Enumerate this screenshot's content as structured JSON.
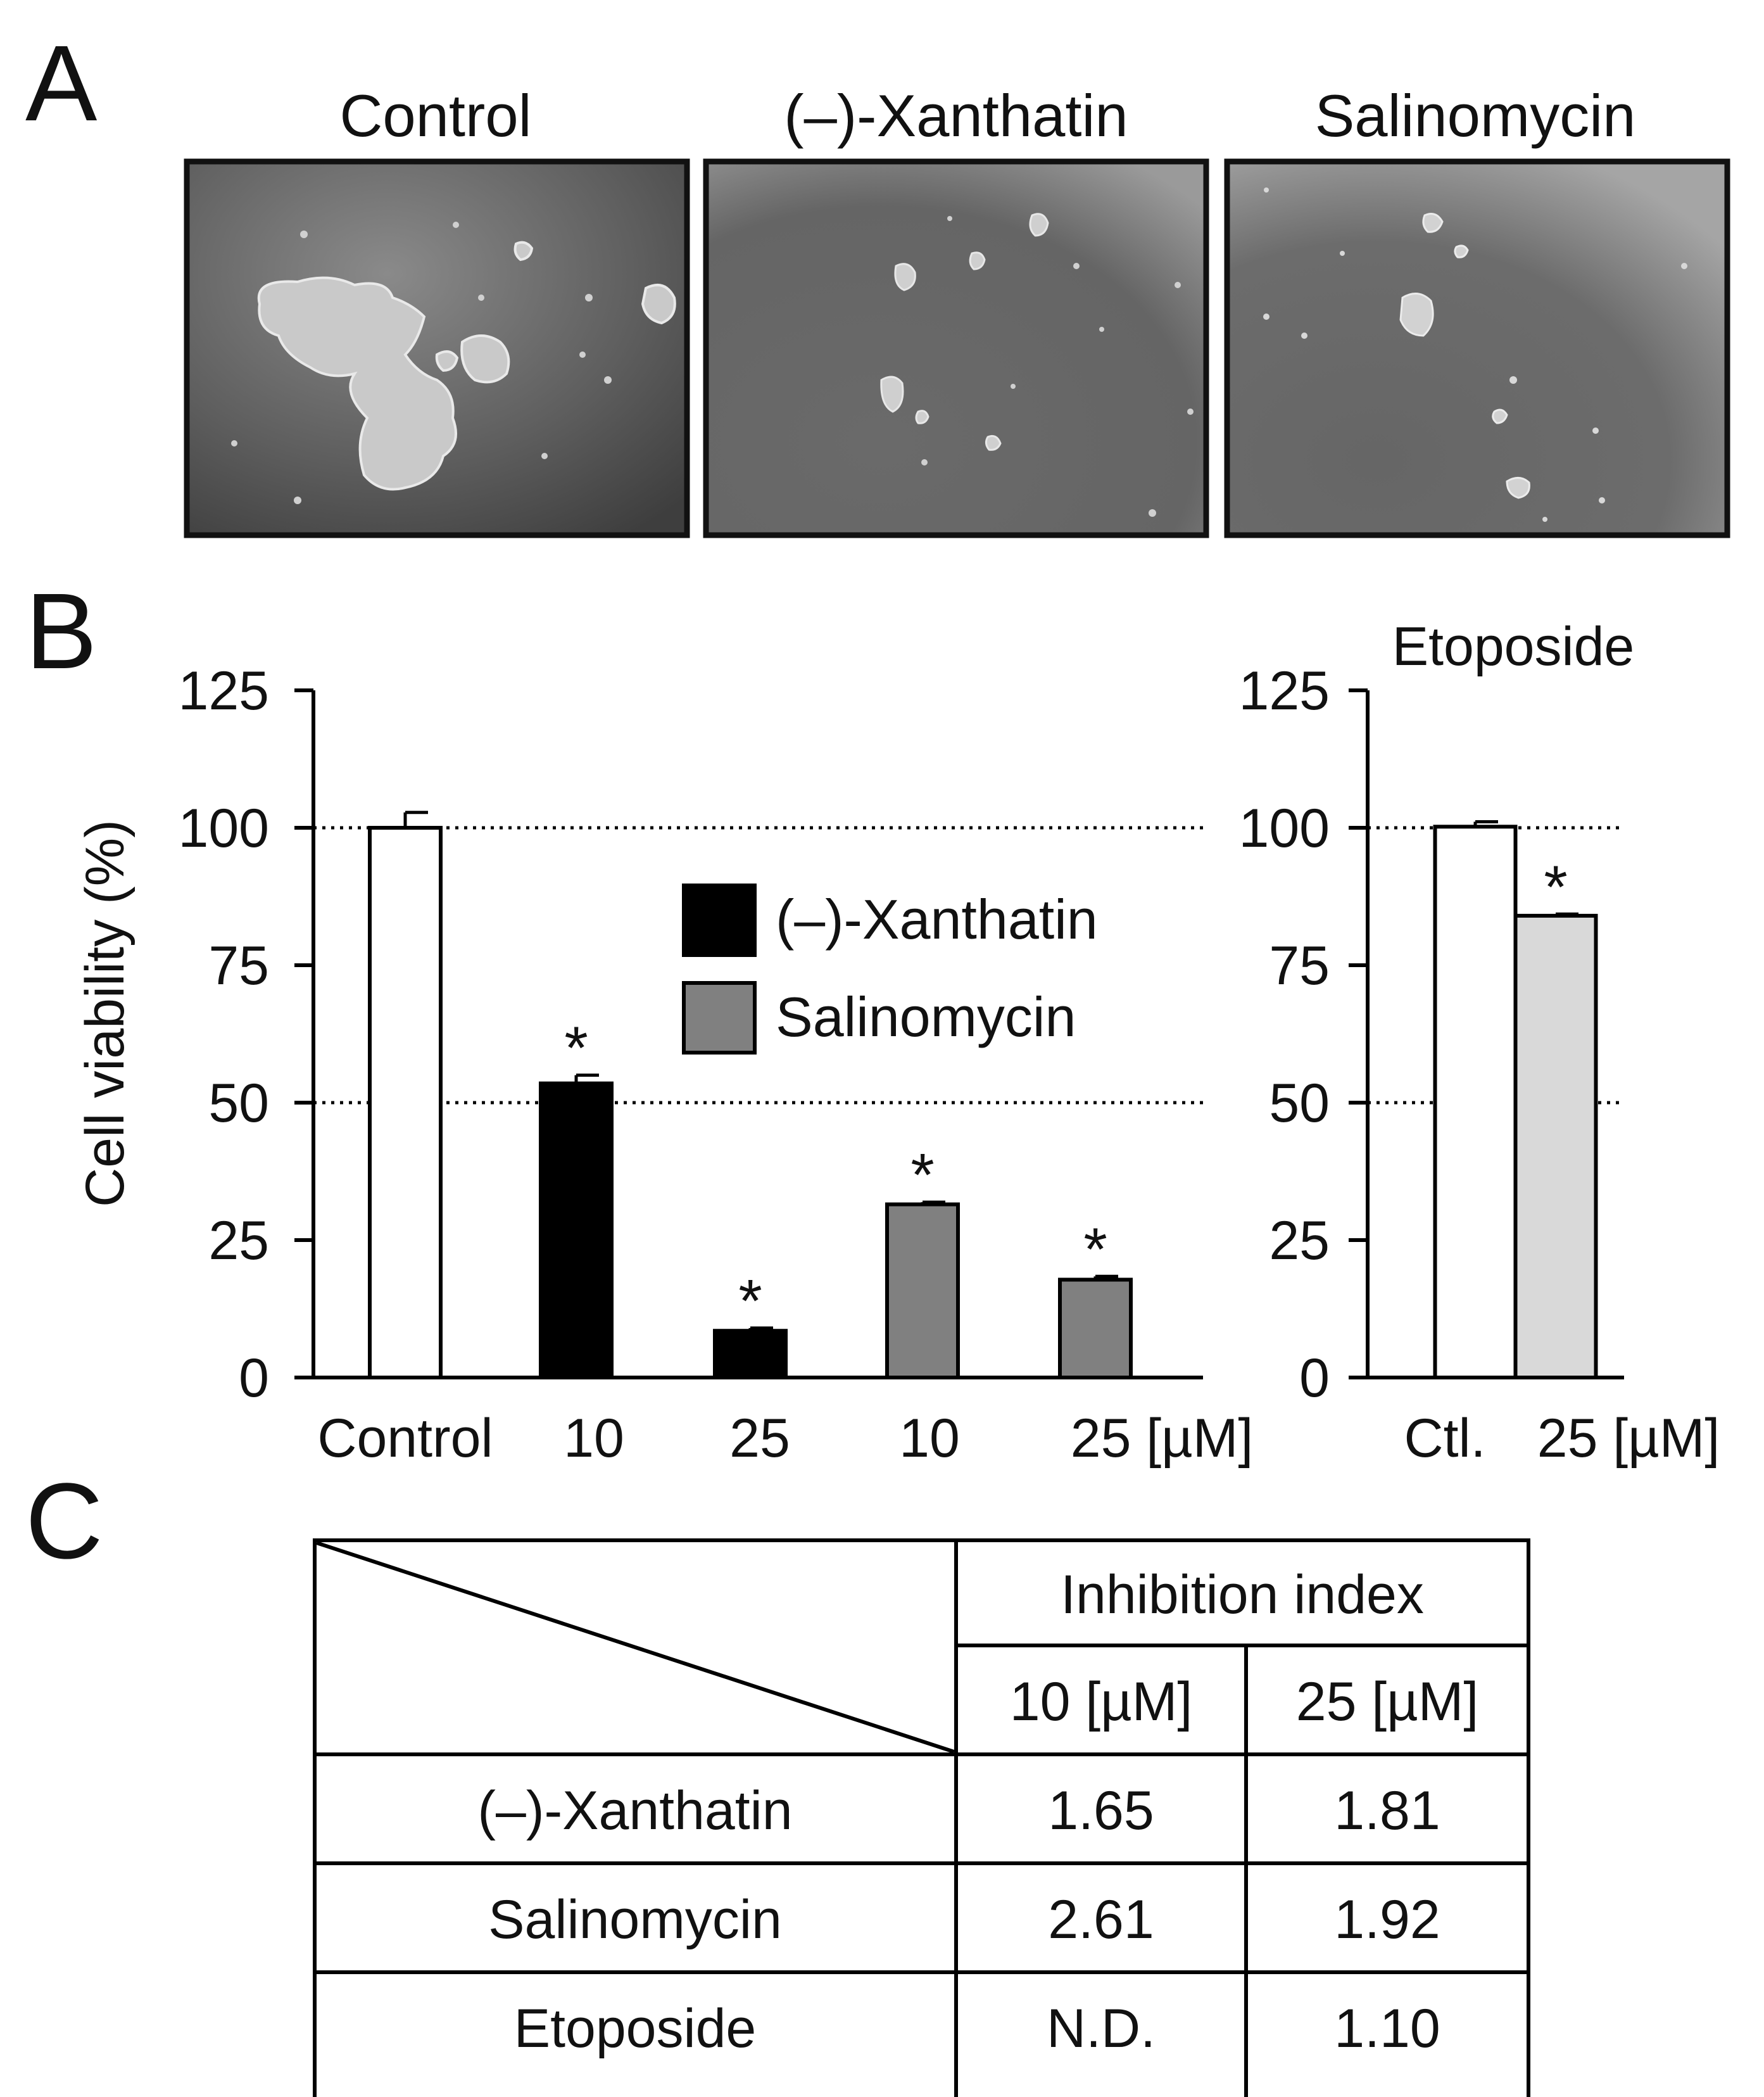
{
  "panels": {
    "a": "A",
    "b": "B",
    "c": "C"
  },
  "photos": [
    {
      "title": "Control"
    },
    {
      "title": "(–)-Xanthatin"
    },
    {
      "title": "Salinomycin"
    }
  ],
  "colors": {
    "xanthatin": "#000000",
    "salinomycin": "#808080",
    "control": "#ffffff",
    "etoposide": "#d9d9d9"
  },
  "chart_data": [
    {
      "type": "bar",
      "ylabel": "Cell viability (%)",
      "ylim": [
        0,
        125
      ],
      "yticks": [
        0,
        25,
        50,
        75,
        100,
        125
      ],
      "reference_lines": [
        50,
        100
      ],
      "grid": false,
      "legend": {
        "placement": "center",
        "entries": [
          "(–)-Xanthatin",
          "Salinomycin"
        ]
      },
      "categories": [
        "Control",
        "10",
        "25",
        "10",
        "25 [µM]"
      ],
      "bars": [
        {
          "value": 100,
          "error": 2.8,
          "series": "control",
          "significant": false
        },
        {
          "value": 53.5,
          "error": 1.5,
          "series": "xanthatin",
          "significant": true
        },
        {
          "value": 8.5,
          "error": 0.5,
          "series": "xanthatin",
          "significant": true
        },
        {
          "value": 31.5,
          "error": 0.4,
          "series": "salinomycin",
          "significant": true
        },
        {
          "value": 17.8,
          "error": 0.6,
          "series": "salinomycin",
          "significant": true
        }
      ],
      "star": "*"
    },
    {
      "type": "bar",
      "title": "Etoposide",
      "ylim": [
        0,
        125
      ],
      "yticks": [
        0,
        25,
        50,
        75,
        100,
        125
      ],
      "reference_lines": [
        50,
        100
      ],
      "grid": false,
      "categories": [
        "Ctl.",
        "25 [µM]"
      ],
      "bars": [
        {
          "value": 100.2,
          "error": 0.9,
          "series": "control",
          "significant": false
        },
        {
          "value": 84,
          "error": 0.3,
          "series": "etoposide",
          "significant": true
        }
      ],
      "star": "*"
    }
  ],
  "table": {
    "header": "Inhibition index",
    "subheaders": [
      "10 [µM]",
      "25 [µM]"
    ],
    "rows": [
      {
        "label": "(–)-Xanthatin",
        "values": [
          "1.65",
          "1.81"
        ]
      },
      {
        "label": "Salinomycin",
        "values": [
          "2.61",
          "1.92"
        ]
      },
      {
        "label": "Etoposide",
        "values": [
          "N.D.",
          "1.10"
        ]
      }
    ]
  }
}
